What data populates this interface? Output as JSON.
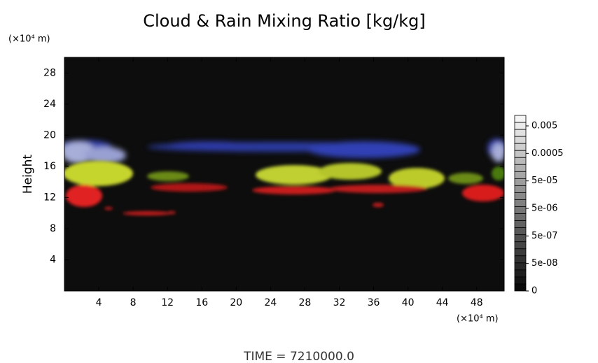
{
  "chart_data": {
    "type": "field",
    "title": "Cloud & Rain Mixing Ratio [kg/kg]",
    "x_unit_label": "(×10⁴ m)",
    "y_unit_label": "(×10⁴ m)",
    "y_label": "Height",
    "footer": "TIME = 7210000.0",
    "xlim": [
      0,
      51.2
    ],
    "xticks": [
      4,
      8,
      12,
      16,
      20,
      24,
      28,
      32,
      36,
      40,
      44,
      48
    ],
    "ylim": [
      0,
      30
    ],
    "yticks": [
      4,
      8,
      12,
      16,
      20,
      24,
      28
    ],
    "background": "#0d0d0d",
    "colorbar_levels": [
      {
        "value": 0.005,
        "label": "0.005"
      },
      {
        "value": 0.0005,
        "label": "0.0005"
      },
      {
        "value": 5e-05,
        "label": "5e-05"
      },
      {
        "value": 5e-06,
        "label": "5e-06"
      },
      {
        "value": 5e-07,
        "label": "5e-07"
      },
      {
        "value": 5e-08,
        "label": "5e-08"
      },
      {
        "value": 0,
        "label": "0"
      }
    ]
  }
}
